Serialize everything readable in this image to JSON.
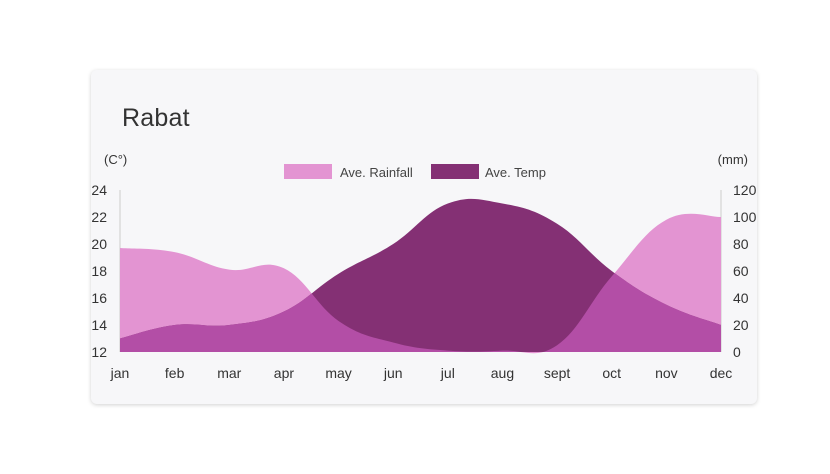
{
  "chart_data": {
    "type": "area",
    "title": "Rabat",
    "categories": [
      "jan",
      "feb",
      "mar",
      "apr",
      "may",
      "jun",
      "jul",
      "aug",
      "sept",
      "oct",
      "nov",
      "dec"
    ],
    "y_left": {
      "unit": "(C°)",
      "range": [
        12,
        24
      ],
      "ticks": [
        12,
        14,
        16,
        18,
        20,
        22,
        24
      ]
    },
    "y_right": {
      "unit": "(mm)",
      "range": [
        0,
        120
      ],
      "ticks": [
        0,
        20,
        40,
        60,
        80,
        100,
        120
      ]
    },
    "series": [
      {
        "name": "Ave. Rainfall",
        "axis": "right",
        "color": "#e394d2",
        "values": [
          77,
          74,
          61,
          62,
          23,
          7,
          1,
          1,
          5,
          56,
          98,
          100
        ]
      },
      {
        "name": "Ave. Temp",
        "axis": "left",
        "color": "#843074",
        "values": [
          13,
          14,
          14,
          15,
          17.8,
          20,
          23,
          23,
          21.5,
          18,
          15.5,
          14
        ]
      }
    ],
    "overlap_color": "#b34ea6",
    "legend_position": "top-center",
    "grid": false
  }
}
